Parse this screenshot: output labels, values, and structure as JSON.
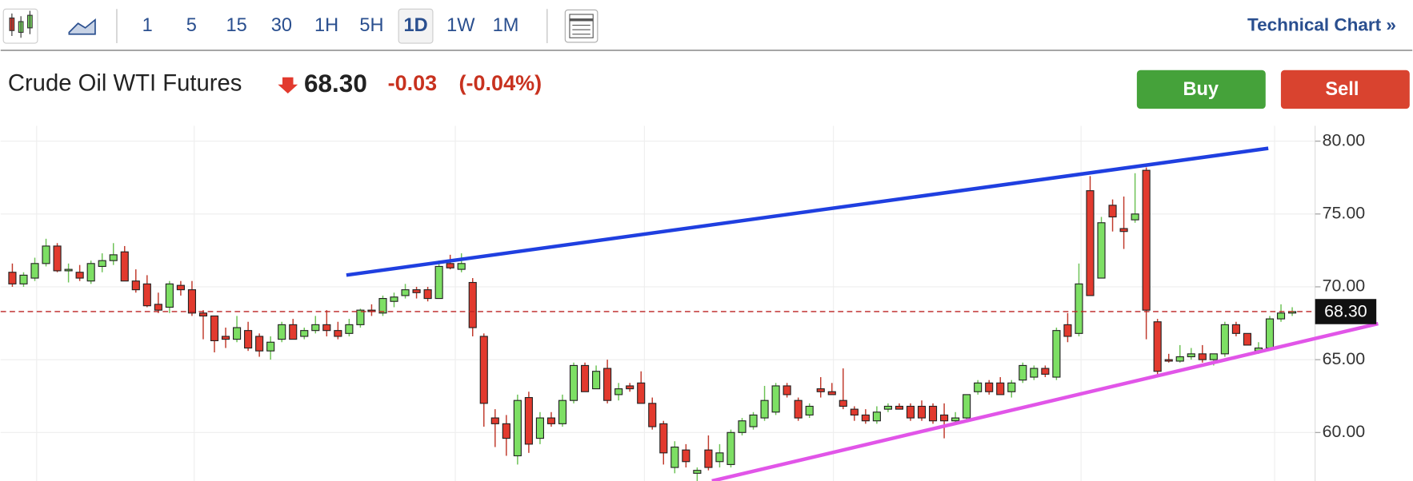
{
  "toolbar": {
    "intervals": [
      "1",
      "5",
      "15",
      "30",
      "1H",
      "5H",
      "1D",
      "1W",
      "1M"
    ],
    "link": "Technical Chart »"
  },
  "quote": {
    "name": "Crude Oil WTI Futures",
    "price": "68.30",
    "change": "-0.03",
    "change_pct": "(-0.04%)"
  },
  "buttons": [
    "Buy",
    "Sell"
  ],
  "chart_data": {
    "type": "candlestick",
    "open": [
      71.0,
      70.2,
      70.6,
      71.6,
      72.8,
      71.1,
      71.0,
      70.4,
      71.4,
      71.8,
      72.4,
      70.4,
      70.2,
      68.8,
      68.6,
      70.1,
      69.8,
      68.2,
      68.0,
      66.6,
      66.4,
      67.0,
      66.6,
      65.6,
      66.4,
      67.4,
      66.6,
      67.0,
      67.4,
      67.0,
      66.8,
      67.4,
      68.4,
      68.2,
      69.0,
      69.4,
      69.8,
      69.8,
      69.2,
      71.6,
      71.2,
      70.3,
      66.6,
      61.0,
      60.6,
      58.4,
      62.4,
      59.6,
      61.0,
      60.6,
      62.2,
      64.6,
      63.0,
      64.4,
      62.6,
      63.2,
      63.4,
      62.0,
      60.6,
      57.6,
      58.8,
      57.2,
      58.8,
      58.0,
      57.8,
      60.0,
      60.4,
      61.0,
      61.4,
      63.2,
      62.2,
      61.2,
      63.0,
      62.8,
      62.2,
      61.6,
      61.2,
      60.8,
      61.6,
      61.8,
      61.8,
      61.8,
      61.8,
      61.2,
      60.8,
      61.0,
      62.8,
      63.4,
      63.4,
      62.8,
      63.6,
      63.8,
      64.4,
      63.8,
      67.4,
      66.8,
      76.6,
      70.6,
      75.6,
      74.0,
      74.6,
      78.0,
      67.6,
      65.0,
      64.9,
      65.2,
      65.4,
      65.0,
      65.4,
      67.4,
      66.8,
      65.6,
      65.8,
      67.8,
      68.2
    ],
    "high": [
      71.6,
      71.0,
      72.0,
      73.3,
      73.0,
      71.6,
      71.5,
      71.8,
      72.3,
      73.0,
      72.8,
      71.2,
      70.8,
      69.6,
      70.4,
      70.4,
      70.4,
      68.4,
      68.0,
      67.2,
      68.0,
      67.6,
      66.8,
      66.6,
      67.6,
      67.8,
      67.2,
      68.0,
      68.4,
      67.6,
      67.8,
      68.5,
      68.8,
      69.4,
      69.6,
      70.2,
      70.0,
      70.0,
      71.8,
      72.2,
      72.3,
      70.6,
      66.8,
      61.6,
      61.2,
      62.6,
      62.8,
      61.4,
      61.4,
      62.6,
      64.8,
      64.8,
      64.6,
      65.0,
      63.4,
      63.4,
      64.2,
      62.4,
      60.8,
      59.4,
      59.2,
      57.6,
      59.8,
      59.2,
      60.2,
      61.0,
      61.4,
      63.2,
      63.4,
      63.4,
      62.4,
      62.0,
      63.8,
      63.4,
      64.4,
      61.8,
      61.6,
      61.8,
      62.0,
      62.0,
      62.0,
      62.2,
      62.0,
      62.0,
      61.4,
      62.6,
      63.6,
      63.6,
      63.8,
      63.6,
      64.8,
      64.6,
      64.6,
      67.2,
      68.2,
      71.6,
      77.6,
      74.8,
      76.0,
      76.2,
      77.8,
      78.2,
      67.8,
      65.4,
      66.0,
      65.8,
      66.0,
      65.4,
      67.6,
      67.6,
      66.8,
      66.2,
      68.0,
      68.8,
      68.6
    ],
    "low": [
      70.0,
      70.0,
      70.4,
      71.4,
      71.0,
      70.3,
      70.4,
      70.2,
      71.0,
      71.5,
      70.4,
      69.6,
      68.6,
      68.2,
      68.2,
      69.4,
      68.0,
      66.4,
      65.5,
      65.8,
      66.2,
      65.6,
      65.2,
      65.0,
      66.2,
      66.4,
      66.4,
      66.8,
      66.6,
      66.4,
      66.6,
      67.2,
      68.0,
      68.0,
      68.6,
      69.2,
      69.2,
      69.0,
      69.2,
      71.2,
      71.0,
      66.6,
      60.4,
      59.0,
      58.4,
      57.8,
      58.6,
      59.2,
      60.4,
      60.4,
      62.0,
      62.8,
      63.0,
      62.0,
      62.2,
      62.8,
      62.0,
      60.2,
      57.8,
      57.2,
      57.6,
      56.0,
      57.4,
      57.6,
      57.6,
      59.8,
      60.2,
      60.8,
      61.2,
      62.4,
      60.8,
      61.0,
      62.4,
      62.6,
      61.6,
      60.8,
      60.6,
      60.6,
      61.4,
      61.6,
      60.8,
      60.8,
      60.6,
      59.6,
      60.6,
      60.8,
      62.6,
      62.6,
      62.6,
      62.4,
      63.4,
      63.6,
      63.8,
      63.6,
      66.2,
      66.6,
      69.4,
      70.6,
      73.8,
      72.6,
      74.4,
      66.4,
      64.0,
      64.8,
      64.8,
      65.0,
      64.8,
      64.6,
      65.2,
      66.6,
      66.0,
      65.4,
      65.6,
      67.6,
      68.0
    ],
    "close": [
      70.2,
      70.8,
      71.6,
      72.8,
      71.1,
      71.2,
      70.6,
      71.6,
      71.8,
      72.2,
      70.4,
      69.8,
      68.7,
      68.4,
      70.2,
      69.8,
      68.2,
      68.0,
      66.3,
      66.4,
      67.2,
      65.8,
      65.6,
      66.2,
      67.4,
      66.4,
      67.0,
      67.4,
      67.0,
      66.6,
      67.4,
      68.4,
      68.3,
      69.2,
      69.3,
      69.8,
      69.6,
      69.2,
      71.4,
      71.3,
      71.6,
      67.2,
      62.0,
      60.6,
      59.6,
      62.2,
      59.2,
      61.0,
      60.6,
      62.2,
      64.6,
      62.8,
      64.2,
      62.2,
      63.0,
      63.0,
      62.0,
      60.4,
      58.6,
      59.0,
      58.0,
      57.4,
      57.6,
      58.6,
      60.0,
      60.8,
      61.2,
      62.2,
      63.2,
      62.6,
      61.0,
      61.8,
      62.8,
      62.6,
      61.8,
      61.2,
      60.8,
      61.4,
      61.8,
      61.6,
      61.0,
      61.0,
      60.8,
      60.8,
      61.0,
      62.6,
      63.4,
      62.8,
      62.6,
      63.4,
      64.6,
      64.4,
      64.0,
      67.0,
      66.6,
      70.2,
      69.4,
      74.4,
      74.8,
      73.8,
      75.0,
      68.4,
      64.2,
      64.9,
      65.2,
      65.4,
      65.0,
      65.4,
      67.4,
      66.8,
      66.0,
      65.8,
      67.8,
      68.2,
      68.3
    ],
    "ylim": [
      56.67,
      81.05
    ],
    "yticks": [
      {
        "value": 60,
        "label": "60.00"
      },
      {
        "value": 65,
        "label": "65.00"
      },
      {
        "value": 70,
        "label": "70.00"
      },
      {
        "value": 75,
        "label": "75.00"
      },
      {
        "value": 80,
        "label": "80.00"
      }
    ],
    "last_price": {
      "value": 68.3,
      "label": "68.30"
    },
    "up_color": "#7ddf64",
    "down_color": "#e23a2e",
    "grid": true
  }
}
